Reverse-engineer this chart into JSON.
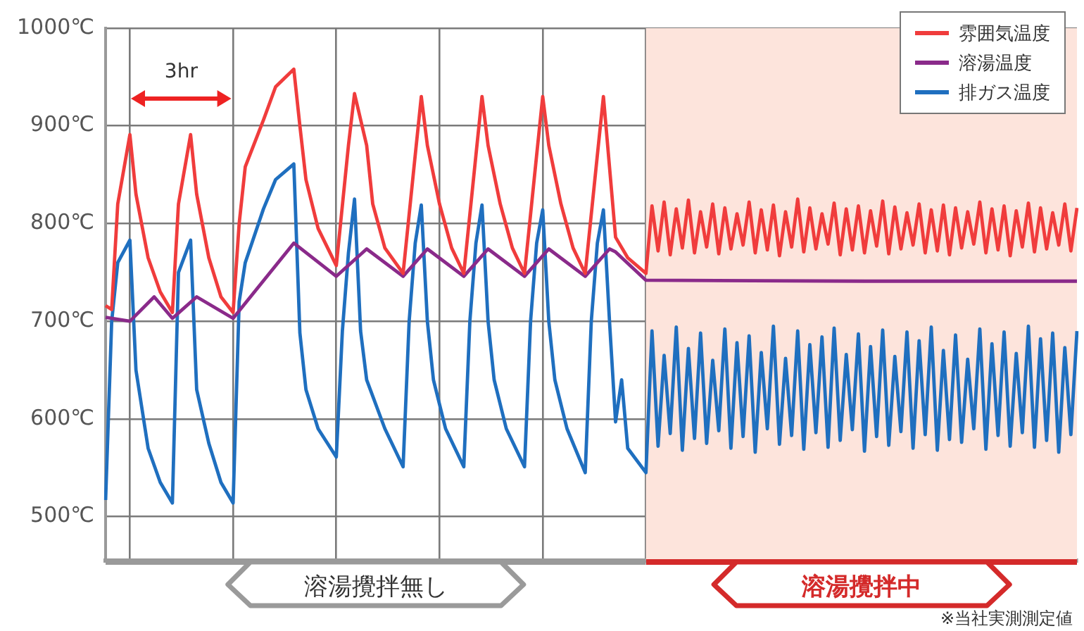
{
  "chart_data": {
    "type": "line",
    "ylim": [
      455,
      1000
    ],
    "categories": [
      null,
      null,
      null,
      null,
      null,
      null,
      null,
      null,
      null,
      null,
      null,
      null,
      null,
      null,
      null,
      null,
      null,
      null,
      null,
      null,
      null,
      null,
      null,
      null,
      null,
      null,
      null,
      null,
      null,
      null,
      null,
      null,
      null,
      null,
      null,
      null,
      null,
      null,
      null,
      null,
      null,
      null,
      null,
      null,
      null,
      null,
      null,
      null,
      null,
      null,
      null,
      null,
      null,
      null,
      null,
      null,
      null,
      null,
      null,
      null,
      null,
      null,
      null,
      null,
      null,
      null,
      null,
      null,
      null,
      null,
      null,
      null,
      null,
      null,
      null,
      null,
      null,
      null,
      null,
      null,
      null,
      null,
      null,
      null,
      null,
      null,
      null,
      null,
      null,
      null,
      null,
      null,
      null,
      null,
      null,
      null,
      null,
      null,
      null,
      null,
      null,
      null,
      null,
      null,
      null,
      null,
      null,
      null,
      null,
      null,
      null,
      null,
      null,
      null,
      null,
      null,
      null,
      null,
      null,
      null,
      null,
      null,
      null,
      null,
      null,
      null,
      null,
      null,
      null,
      null,
      null,
      null,
      null,
      null,
      null,
      null,
      null,
      null,
      null,
      null,
      null,
      null,
      null,
      null,
      null,
      null,
      null,
      null,
      null,
      null,
      null,
      null,
      null,
      null,
      null,
      null,
      null,
      null,
      null,
      null,
      null
    ],
    "yticks": [
      {
        "value": 500,
        "label": "500℃"
      },
      {
        "value": 600,
        "label": "600℃"
      },
      {
        "value": 700,
        "label": "700℃"
      },
      {
        "value": 800,
        "label": "800℃"
      },
      {
        "value": 900,
        "label": "900℃"
      },
      {
        "value": 1000,
        "label": "1000℃"
      }
    ],
    "tick_labels": "y",
    "grid": true,
    "legend": "top right",
    "series": [
      {
        "name": "雰囲気温度",
        "color": "#f03c3c",
        "values": [
          716,
          712,
          820,
          null,
          891,
          830,
          null,
          765,
          null,
          730,
          null,
          709,
          820,
          null,
          891,
          830,
          null,
          765,
          null,
          725,
          null,
          709,
          800,
          858,
          null,
          null,
          906,
          null,
          940,
          null,
          null,
          958,
          900,
          845,
          null,
          795,
          null,
          null,
          757,
          null,
          880,
          933,
          null,
          880,
          820,
          null,
          775,
          null,
          null,
          749,
          null,
          870,
          930,
          880,
          null,
          820,
          null,
          775,
          null,
          749,
          null,
          870,
          930,
          880,
          null,
          820,
          null,
          775,
          null,
          749,
          null,
          870,
          930,
          880,
          null,
          820,
          null,
          775,
          null,
          749,
          null,
          870,
          930,
          null,
          786,
          null,
          765,
          null,
          null,
          749,
          818,
          772,
          822,
          768,
          815,
          775,
          824,
          770,
          812,
          776,
          820,
          769,
          816,
          774,
          810,
          778,
          822,
          770,
          814,
          773,
          819,
          767,
          812,
          776,
          825,
          771,
          816,
          774,
          810,
          779,
          821,
          768,
          815,
          773,
          818,
          770,
          813,
          777,
          823,
          769,
          817,
          774,
          811,
          778,
          820,
          770,
          814,
          772,
          819,
          768,
          816,
          775,
          812,
          779,
          822,
          770,
          815,
          773,
          818,
          767,
          813,
          776,
          821,
          771,
          816,
          774,
          811,
          778,
          820,
          772,
          816
        ]
      },
      {
        "name": "溶湯温度",
        "color": "#8a2a8a",
        "values": [
          704,
          null,
          null,
          null,
          700,
          null,
          null,
          null,
          725,
          null,
          null,
          703,
          null,
          null,
          null,
          725,
          null,
          null,
          null,
          null,
          null,
          703,
          null,
          null,
          null,
          null,
          null,
          null,
          null,
          null,
          null,
          780,
          null,
          null,
          null,
          null,
          null,
          null,
          746,
          null,
          null,
          null,
          null,
          774,
          null,
          null,
          null,
          null,
          null,
          746,
          null,
          null,
          null,
          774,
          null,
          null,
          null,
          null,
          null,
          746,
          null,
          null,
          null,
          774,
          null,
          null,
          null,
          null,
          null,
          746,
          null,
          null,
          null,
          774,
          null,
          null,
          null,
          null,
          null,
          746,
          null,
          null,
          null,
          774,
          771,
          null,
          null,
          null,
          null,
          742,
          null,
          null,
          null,
          null,
          null,
          null,
          null,
          null,
          null,
          null,
          null,
          null,
          null,
          null,
          null,
          null,
          null,
          null,
          null,
          null,
          null,
          null,
          null,
          null,
          null,
          null,
          null,
          null,
          null,
          null,
          null,
          null,
          null,
          null,
          null,
          741,
          null,
          null,
          null,
          null,
          null,
          null,
          null,
          null,
          null,
          null,
          null,
          null,
          null,
          null,
          null,
          null,
          null,
          null,
          null,
          null,
          null,
          null,
          null,
          null,
          null,
          null,
          null,
          null,
          null,
          null,
          null,
          null,
          null,
          null,
          741
        ]
      },
      {
        "name": "排ガス温度",
        "color": "#1f6fbf",
        "values": [
          517,
          700,
          760,
          null,
          783,
          650,
          null,
          570,
          null,
          535,
          null,
          514,
          750,
          null,
          783,
          630,
          null,
          575,
          null,
          535,
          null,
          514,
          720,
          760,
          null,
          null,
          815,
          null,
          845,
          null,
          null,
          861,
          688,
          630,
          null,
          590,
          null,
          null,
          561,
          690,
          770,
          825,
          690,
          640,
          null,
          null,
          590,
          null,
          null,
          551,
          700,
          780,
          819,
          700,
          640,
          null,
          590,
          null,
          null,
          551,
          700,
          780,
          819,
          700,
          640,
          null,
          590,
          null,
          null,
          551,
          700,
          780,
          814,
          700,
          640,
          null,
          590,
          null,
          null,
          545,
          700,
          780,
          814,
          700,
          597,
          640,
          570,
          null,
          null,
          545,
          690,
          572,
          665,
          585,
          694,
          568,
          672,
          580,
          688,
          575,
          660,
          588,
          692,
          570,
          678,
          582,
          685,
          566,
          668,
          590,
          695,
          574,
          662,
          583,
          690,
          569,
          676,
          586,
          684,
          571,
          693,
          578,
          666,
          589,
          687,
          567,
          674,
          582,
          691,
          573,
          664,
          587,
          689,
          570,
          680,
          584,
          694,
          568,
          670,
          579,
          686,
          576,
          661,
          590,
          692,
          569,
          677,
          583,
          689,
          572,
          667,
          586,
          695,
          571,
          682,
          578,
          688,
          566,
          673,
          584,
          690
        ]
      }
    ],
    "annotations": [
      "3hr",
      "溶湯攪拌無し",
      "溶湯攪拌中",
      "※当社実測測定値"
    ]
  }
}
